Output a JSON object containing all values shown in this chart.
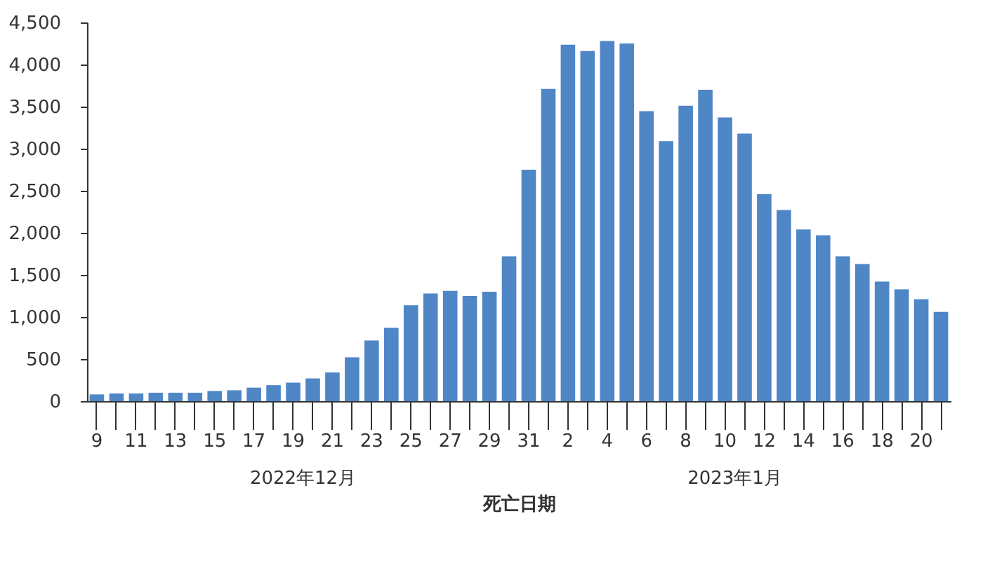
{
  "chart_data": {
    "type": "bar",
    "xlabel": "死亡日期",
    "categories": [
      "9",
      null,
      "11",
      null,
      "13",
      null,
      "15",
      null,
      "17",
      null,
      "19",
      null,
      "21",
      null,
      "23",
      null,
      "25",
      null,
      "27",
      null,
      "29",
      null,
      "31",
      null,
      "2",
      null,
      "4",
      null,
      "6",
      null,
      "8",
      null,
      "10",
      null,
      "12",
      null,
      "14",
      null,
      "16",
      null,
      "18",
      null,
      "20",
      null
    ],
    "values": [
      80,
      90,
      90,
      100,
      100,
      100,
      120,
      130,
      160,
      190,
      220,
      270,
      340,
      520,
      720,
      870,
      1140,
      1280,
      1310,
      1250,
      1300,
      1720,
      2750,
      3710,
      4235,
      4160,
      4280,
      4250,
      3445,
      3090,
      3510,
      3700,
      3370,
      3180,
      2460,
      2270,
      2040,
      1970,
      1720,
      1630,
      1420,
      1330,
      1210,
      1060
    ],
    "color": "#4f86c6",
    "ylim": [
      0,
      4500
    ],
    "yticks": [
      0,
      {
        "value": 500,
        "label": "500"
      },
      {
        "value": 1000,
        "label": "1,000"
      },
      {
        "value": 1500,
        "label": "1,500"
      },
      {
        "value": 2000,
        "label": "2,000"
      },
      {
        "value": 2500,
        "label": "2,500"
      },
      {
        "value": 3000,
        "label": "3,000"
      },
      {
        "value": 3500,
        "label": "3,500"
      },
      {
        "value": 4000,
        "label": "4,000"
      },
      {
        "value": 4500,
        "label": "4,500"
      }
    ],
    "grid": false,
    "annotations": [
      "2022年12月",
      "2023年1月"
    ]
  }
}
